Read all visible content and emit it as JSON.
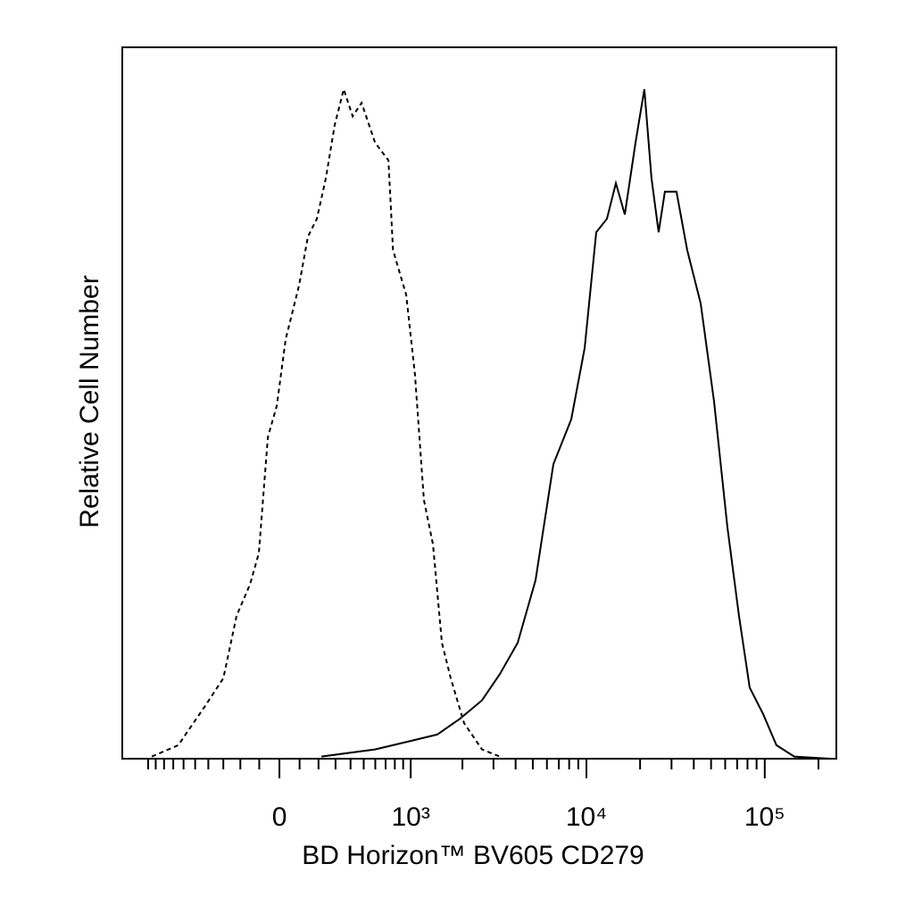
{
  "chart_data": {
    "type": "line",
    "xlabel": "BD Horizon™ BV605 CD279",
    "ylabel": "Relative Cell Number",
    "xscale": "biexponential",
    "xlim": [
      -1420,
      252000
    ],
    "ylim": [
      0,
      100
    ],
    "xticks": [
      0,
      {
        "value": 1000,
        "label": "10³"
      },
      {
        "value": 10000,
        "label": "10⁴"
      },
      {
        "value": 100000,
        "label": "10⁵"
      }
    ],
    "xminorticks": [
      -1000,
      -900,
      -800,
      -700,
      -600,
      -500,
      -400,
      -300,
      -200,
      -100,
      100,
      200,
      300,
      400,
      500,
      600,
      700,
      800,
      900,
      2000,
      3000,
      4000,
      5000,
      6000,
      7000,
      8000,
      9000,
      20000,
      30000,
      40000,
      50000,
      60000,
      70000,
      80000,
      90000,
      200000
    ],
    "series": [
      {
        "color": "#000000",
        "line_style": "dashed",
        "x": [
          -950,
          -650,
          -420,
          -300,
          -221,
          -148,
          -102,
          -57,
          -13,
          31,
          97,
          143,
          191,
          242,
          295,
          353,
          415,
          483,
          598,
          730,
          779,
          939,
          1060,
          1197,
          1353,
          1524,
          1714,
          2044,
          2584,
          3260
        ],
        "values": [
          0.3,
          1.9,
          7.5,
          11.3,
          20.1,
          24.5,
          28.9,
          45.2,
          49.6,
          59.0,
          66.5,
          73.4,
          75.9,
          81.6,
          89.1,
          94.1,
          90.3,
          92.2,
          86.6,
          84.1,
          71.5,
          65.2,
          54.0,
          36.4,
          30.1,
          16.3,
          11.3,
          5.0,
          1.3,
          0.3
        ]
      },
      {
        "color": "#000000",
        "line_style": "solid",
        "x": [
          216,
          598,
          999,
          1433,
          1930,
          2584,
          3260,
          4108,
          5176,
          6528,
          8216,
          9766,
          11350,
          13030,
          14630,
          16420,
          18850,
          21130,
          23180,
          25420,
          27550,
          32000,
          36750,
          43700,
          51950,
          61700,
          71700,
          82300,
          97800,
          116300,
          146300,
          232600
        ],
        "values": [
          0.3,
          1.3,
          2.5,
          3.4,
          5.6,
          8.2,
          11.9,
          16.3,
          25.1,
          41.4,
          47.7,
          57.7,
          74.0,
          75.9,
          80.9,
          76.5,
          86.6,
          94.1,
          81.6,
          74.0,
          79.7,
          79.7,
          71.5,
          64.0,
          50.2,
          32.6,
          20.1,
          10.0,
          6.3,
          1.9,
          0.3,
          0
        ]
      }
    ]
  }
}
